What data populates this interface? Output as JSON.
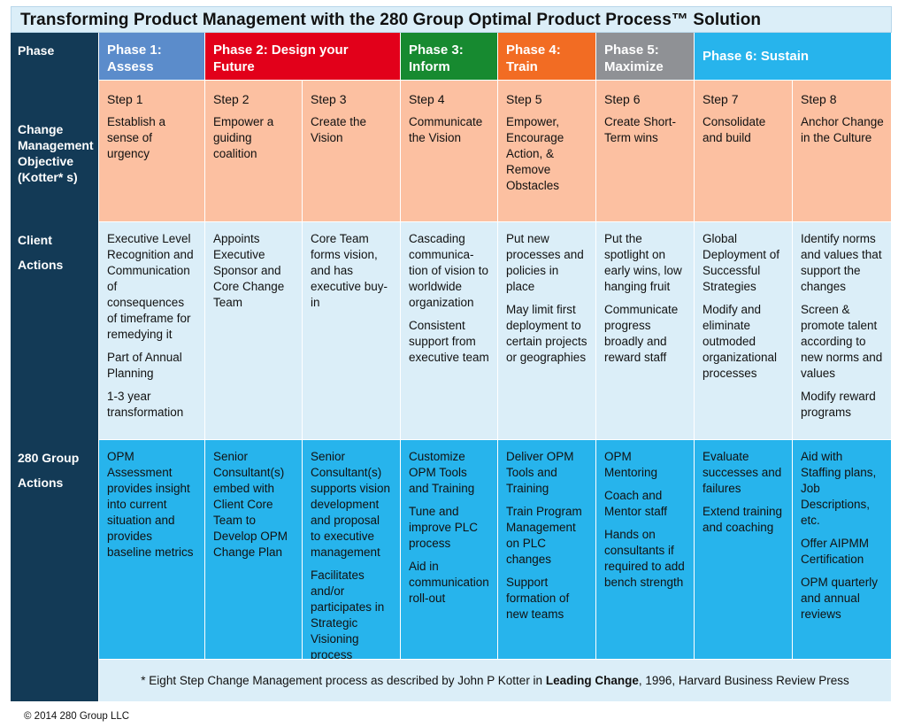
{
  "title": "Transforming Product Management with the 280 Group Optimal Product Process™ Solution",
  "row_headers": {
    "phase": "Phase",
    "kotter": "Change Management Objective (Kotter* s)",
    "client": "Client Actions",
    "group": "280 Group Actions"
  },
  "phases": [
    {
      "label": "Phase 1: Assess",
      "color": "#5b8ccb"
    },
    {
      "label": "Phase 2: Design your Future",
      "color": "#e2001a"
    },
    {
      "label": "Phase 3: Inform",
      "color": "#178a30"
    },
    {
      "label": "Phase 4: Train",
      "color": "#f26c23"
    },
    {
      "label": "Phase 5: Maximize",
      "color": "#8f9195"
    },
    {
      "label": "Phase 6: Sustain",
      "color": "#27b4ec"
    }
  ],
  "steps": [
    {
      "step": "Step 1",
      "objective": "Establish a sense of urgency"
    },
    {
      "step": "Step 2",
      "objective": "Empower a guiding coalition"
    },
    {
      "step": "Step 3",
      "objective": "Create the Vision"
    },
    {
      "step": "Step 4",
      "objective": "Communicate the Vision"
    },
    {
      "step": "Step 5",
      "objective": "Empower, Encourage Action, & Remove Obstacles"
    },
    {
      "step": "Step 6",
      "objective": "Create Short-Term wins"
    },
    {
      "step": "Step 7",
      "objective": "Consolidate and build"
    },
    {
      "step": "Step 8",
      "objective": "Anchor Change in the Culture"
    }
  ],
  "client_actions": [
    [
      "Executive Level Recognition and Communication of consequences of timeframe for remedying it",
      "Part of Annual Planning",
      "1-3 year transformation"
    ],
    [
      "Appoints Executive Sponsor and Core Change Team"
    ],
    [
      "Core Team forms vision, and has executive buy-in"
    ],
    [
      "Cascading communica-tion of vision to worldwide organization",
      "Consistent support from executive team"
    ],
    [
      "Put new processes and policies in place",
      "May limit first deployment to certain projects or geographies"
    ],
    [
      "Put the spotlight on early wins, low hanging fruit",
      "Communicate progress broadly and reward staff"
    ],
    [
      "Global Deployment of Successful Strategies",
      "Modify and eliminate outmoded organizational processes"
    ],
    [
      "Identify norms and values that support the changes",
      "Screen & promote talent according to new norms and values",
      "Modify reward programs"
    ]
  ],
  "group_actions": [
    [
      "OPM Assessment provides insight into current situation and provides baseline metrics"
    ],
    [
      "Senior Consultant(s) embed with Client Core Team to Develop OPM Change Plan"
    ],
    [
      "Senior Consultant(s) supports vision development and proposal to executive management",
      "Facilitates and/or participates in Strategic Visioning process"
    ],
    [
      "Customize OPM Tools and Training",
      "Tune and improve PLC process",
      "Aid in communication roll-out"
    ],
    [
      "Deliver OPM Tools and Training",
      "Train Program Management on PLC changes",
      "Support formation of new teams"
    ],
    [
      "OPM Mentoring",
      "Coach and Mentor staff",
      "Hands on consultants if required to add bench strength"
    ],
    [
      "Evaluate successes and failures",
      "Extend training and coaching"
    ],
    [
      "Aid with Staffing plans, Job Descriptions, etc.",
      "Offer AIPMM Certification",
      "OPM quarterly and annual reviews"
    ]
  ],
  "footnote": {
    "prefix": "* Eight Step Change Management process as described by John P Kotter in ",
    "book": "Leading Change",
    "suffix": ", 1996, Harvard Business Review Press"
  },
  "copyright": "© 2014 280 Group LLC"
}
